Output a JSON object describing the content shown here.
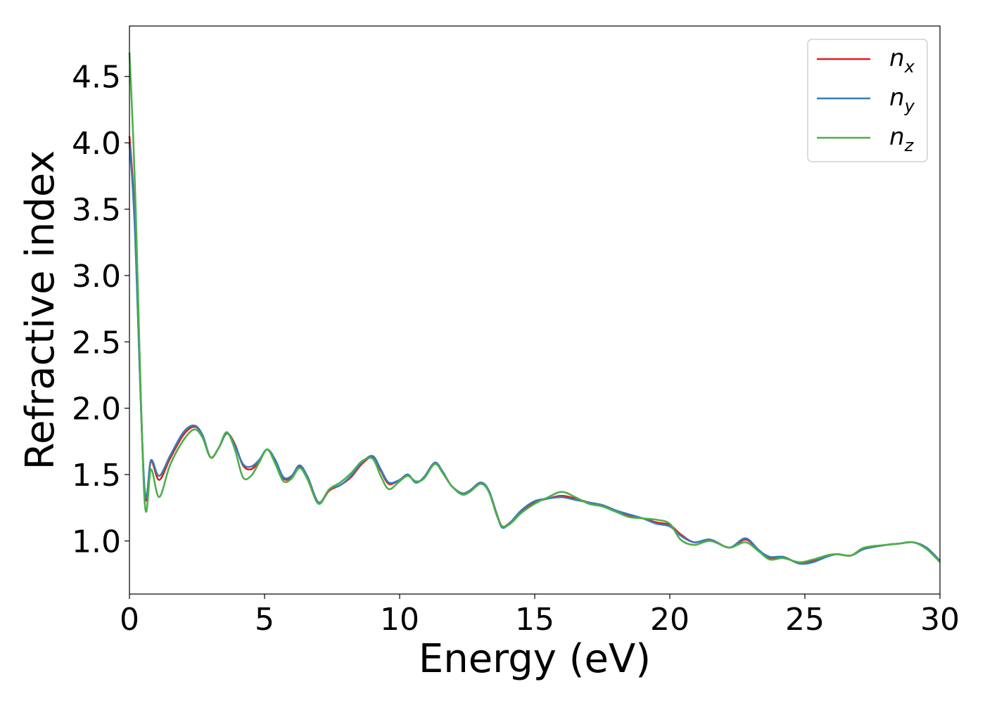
{
  "chart_data": {
    "type": "line",
    "xlabel": "Energy (eV)",
    "ylabel": "Refractive index",
    "xlim": [
      0,
      30
    ],
    "ylim": [
      0.6,
      4.88
    ],
    "xticks": [
      0,
      5,
      10,
      15,
      20,
      25,
      30
    ],
    "xtick_labels": [
      "0",
      "5",
      "10",
      "15",
      "20",
      "25",
      "30"
    ],
    "yticks": [
      1.0,
      1.5,
      2.0,
      2.5,
      3.0,
      3.5,
      4.0,
      4.5
    ],
    "ytick_labels": [
      "1.0",
      "1.5",
      "2.0",
      "2.5",
      "3.0",
      "3.5",
      "4.0",
      "4.5"
    ],
    "grid": false,
    "legend_position": "top-right",
    "x": [
      0.0,
      0.2,
      0.55,
      0.8,
      1.1,
      1.5,
      2.0,
      2.4,
      2.7,
      3.0,
      3.3,
      3.6,
      3.9,
      4.2,
      4.5,
      4.8,
      5.1,
      5.4,
      5.7,
      6.0,
      6.3,
      6.6,
      7.0,
      7.4,
      7.8,
      8.2,
      8.6,
      9.0,
      9.3,
      9.6,
      10.0,
      10.3,
      10.6,
      10.9,
      11.3,
      11.6,
      11.9,
      12.3,
      12.6,
      13.0,
      13.3,
      13.6,
      13.8,
      14.1,
      14.5,
      15.0,
      15.5,
      16.0,
      16.5,
      17.0,
      17.5,
      18.0,
      18.5,
      19.0,
      19.5,
      20.0,
      20.4,
      20.9,
      21.5,
      22.2,
      22.8,
      23.3,
      23.7,
      24.2,
      24.8,
      25.3,
      25.8,
      26.2,
      26.7,
      27.2,
      28.0,
      28.5,
      29.0,
      29.5,
      30.0
    ],
    "series": [
      {
        "name": "n_x",
        "color": "#e41a1c",
        "values": [
          4.05,
          3.4,
          1.4,
          1.6,
          1.46,
          1.62,
          1.8,
          1.86,
          1.8,
          1.63,
          1.7,
          1.81,
          1.73,
          1.57,
          1.54,
          1.6,
          1.69,
          1.6,
          1.47,
          1.48,
          1.56,
          1.48,
          1.29,
          1.38,
          1.42,
          1.48,
          1.58,
          1.63,
          1.53,
          1.43,
          1.46,
          1.5,
          1.44,
          1.48,
          1.58,
          1.52,
          1.42,
          1.36,
          1.38,
          1.44,
          1.38,
          1.2,
          1.11,
          1.14,
          1.22,
          1.29,
          1.32,
          1.34,
          1.32,
          1.29,
          1.27,
          1.23,
          1.19,
          1.17,
          1.14,
          1.12,
          1.05,
          0.99,
          1.01,
          0.95,
          1.01,
          0.93,
          0.87,
          0.88,
          0.83,
          0.85,
          0.89,
          0.9,
          0.89,
          0.94,
          0.97,
          0.98,
          0.99,
          0.95,
          0.85
        ]
      },
      {
        "name": "n_y",
        "color": "#377eb8",
        "values": [
          4.0,
          3.35,
          1.42,
          1.61,
          1.49,
          1.64,
          1.82,
          1.87,
          1.8,
          1.63,
          1.7,
          1.81,
          1.72,
          1.58,
          1.56,
          1.61,
          1.69,
          1.61,
          1.48,
          1.49,
          1.57,
          1.48,
          1.29,
          1.39,
          1.42,
          1.49,
          1.59,
          1.64,
          1.54,
          1.44,
          1.46,
          1.5,
          1.44,
          1.48,
          1.59,
          1.52,
          1.42,
          1.36,
          1.38,
          1.44,
          1.38,
          1.2,
          1.1,
          1.14,
          1.23,
          1.3,
          1.32,
          1.33,
          1.31,
          1.29,
          1.27,
          1.23,
          1.2,
          1.17,
          1.13,
          1.11,
          1.04,
          0.99,
          1.01,
          0.95,
          1.02,
          0.93,
          0.88,
          0.88,
          0.83,
          0.84,
          0.88,
          0.9,
          0.89,
          0.94,
          0.97,
          0.98,
          0.99,
          0.95,
          0.85
        ]
      },
      {
        "name": "n_z",
        "color": "#4daf4a",
        "values": [
          4.68,
          3.7,
          1.34,
          1.54,
          1.33,
          1.57,
          1.76,
          1.84,
          1.78,
          1.63,
          1.7,
          1.82,
          1.69,
          1.48,
          1.49,
          1.59,
          1.69,
          1.58,
          1.45,
          1.47,
          1.55,
          1.46,
          1.28,
          1.39,
          1.44,
          1.51,
          1.6,
          1.62,
          1.49,
          1.39,
          1.45,
          1.49,
          1.45,
          1.47,
          1.58,
          1.51,
          1.42,
          1.35,
          1.37,
          1.43,
          1.37,
          1.19,
          1.11,
          1.13,
          1.21,
          1.28,
          1.33,
          1.37,
          1.33,
          1.28,
          1.26,
          1.22,
          1.18,
          1.17,
          1.16,
          1.13,
          1.01,
          0.97,
          1.0,
          0.95,
          0.99,
          0.92,
          0.86,
          0.87,
          0.84,
          0.86,
          0.89,
          0.9,
          0.89,
          0.95,
          0.97,
          0.98,
          0.99,
          0.94,
          0.84
        ]
      }
    ],
    "legend": [
      {
        "base": "n",
        "sub": "x",
        "color": "#e41a1c"
      },
      {
        "base": "n",
        "sub": "y",
        "color": "#377eb8"
      },
      {
        "base": "n",
        "sub": "z",
        "color": "#4daf4a"
      }
    ]
  }
}
